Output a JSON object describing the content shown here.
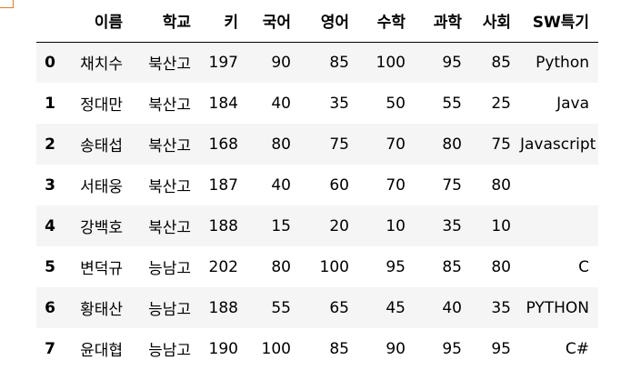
{
  "table": {
    "columns": [
      "",
      "이름",
      "학교",
      "키",
      "국어",
      "영어",
      "수학",
      "과학",
      "사회",
      "SW특기"
    ],
    "rows": [
      {
        "index": "0",
        "name": "채치수",
        "school": "북산고",
        "height": "197",
        "korean": "90",
        "english": "85",
        "math": "100",
        "science": "95",
        "social": "85",
        "sw": "Python"
      },
      {
        "index": "1",
        "name": "정대만",
        "school": "북산고",
        "height": "184",
        "korean": "40",
        "english": "35",
        "math": "50",
        "science": "55",
        "social": "25",
        "sw": "Java"
      },
      {
        "index": "2",
        "name": "송태섭",
        "school": "북산고",
        "height": "168",
        "korean": "80",
        "english": "75",
        "math": "70",
        "science": "80",
        "social": "75",
        "sw": "Javascript"
      },
      {
        "index": "3",
        "name": "서태웅",
        "school": "북산고",
        "height": "187",
        "korean": "40",
        "english": "60",
        "math": "70",
        "science": "75",
        "social": "80",
        "sw": ""
      },
      {
        "index": "4",
        "name": "강백호",
        "school": "북산고",
        "height": "188",
        "korean": "15",
        "english": "20",
        "math": "10",
        "science": "35",
        "social": "10",
        "sw": ""
      },
      {
        "index": "5",
        "name": "변덕규",
        "school": "능남고",
        "height": "202",
        "korean": "80",
        "english": "100",
        "math": "95",
        "science": "85",
        "social": "80",
        "sw": "C"
      },
      {
        "index": "6",
        "name": "황태산",
        "school": "능남고",
        "height": "188",
        "korean": "55",
        "english": "65",
        "math": "45",
        "science": "40",
        "social": "35",
        "sw": "PYTHON"
      },
      {
        "index": "7",
        "name": "윤대협",
        "school": "능남고",
        "height": "190",
        "korean": "100",
        "english": "85",
        "math": "90",
        "science": "95",
        "social": "95",
        "sw": "C#"
      }
    ]
  },
  "colors": {
    "stripe": "#f5f5f5",
    "border": "#000000",
    "corner_accent": "#e07a2a"
  }
}
